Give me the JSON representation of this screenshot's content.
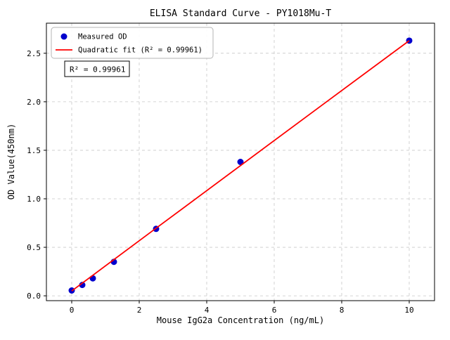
{
  "chart_data": {
    "type": "scatter",
    "title": "ELISA Standard Curve - PY1018Mu-T",
    "xlabel": "Mouse IgG2a Concentration (ng/mL)",
    "ylabel": "OD Value(450nm)",
    "xlim": [
      -0.75,
      10.75
    ],
    "ylim": [
      -0.05,
      2.81
    ],
    "xticks": {
      "values": [
        0,
        2,
        4,
        6,
        8,
        10
      ],
      "labels": [
        "0",
        "2",
        "4",
        "6",
        "8",
        "10"
      ]
    },
    "yticks": {
      "values": [
        0.0,
        0.5,
        1.0,
        1.5,
        2.0,
        2.5
      ],
      "labels": [
        "0.0",
        "0.5",
        "1.0",
        "1.5",
        "2.0",
        "2.5"
      ]
    },
    "grid": {
      "visible": true,
      "color": "#c8c8c8",
      "style": "dashed"
    },
    "legend": {
      "position": "upper left"
    },
    "annotation": "R² = 0.99961",
    "series": [
      {
        "name": "Measured OD",
        "type": "scatter",
        "color": "#0000cd",
        "x": [
          0,
          0.3125,
          0.625,
          1.25,
          2.5,
          5,
          10
        ],
        "y": [
          0.055,
          0.112,
          0.18,
          0.35,
          0.69,
          1.38,
          2.63
        ]
      },
      {
        "name": "Quadratic fit (R² = 0.99961)",
        "type": "line",
        "color": "#ff0000",
        "x": [
          0,
          2.5,
          5,
          7.5,
          10
        ],
        "y": [
          0.05,
          0.697,
          1.342,
          1.987,
          2.63
        ]
      }
    ]
  }
}
